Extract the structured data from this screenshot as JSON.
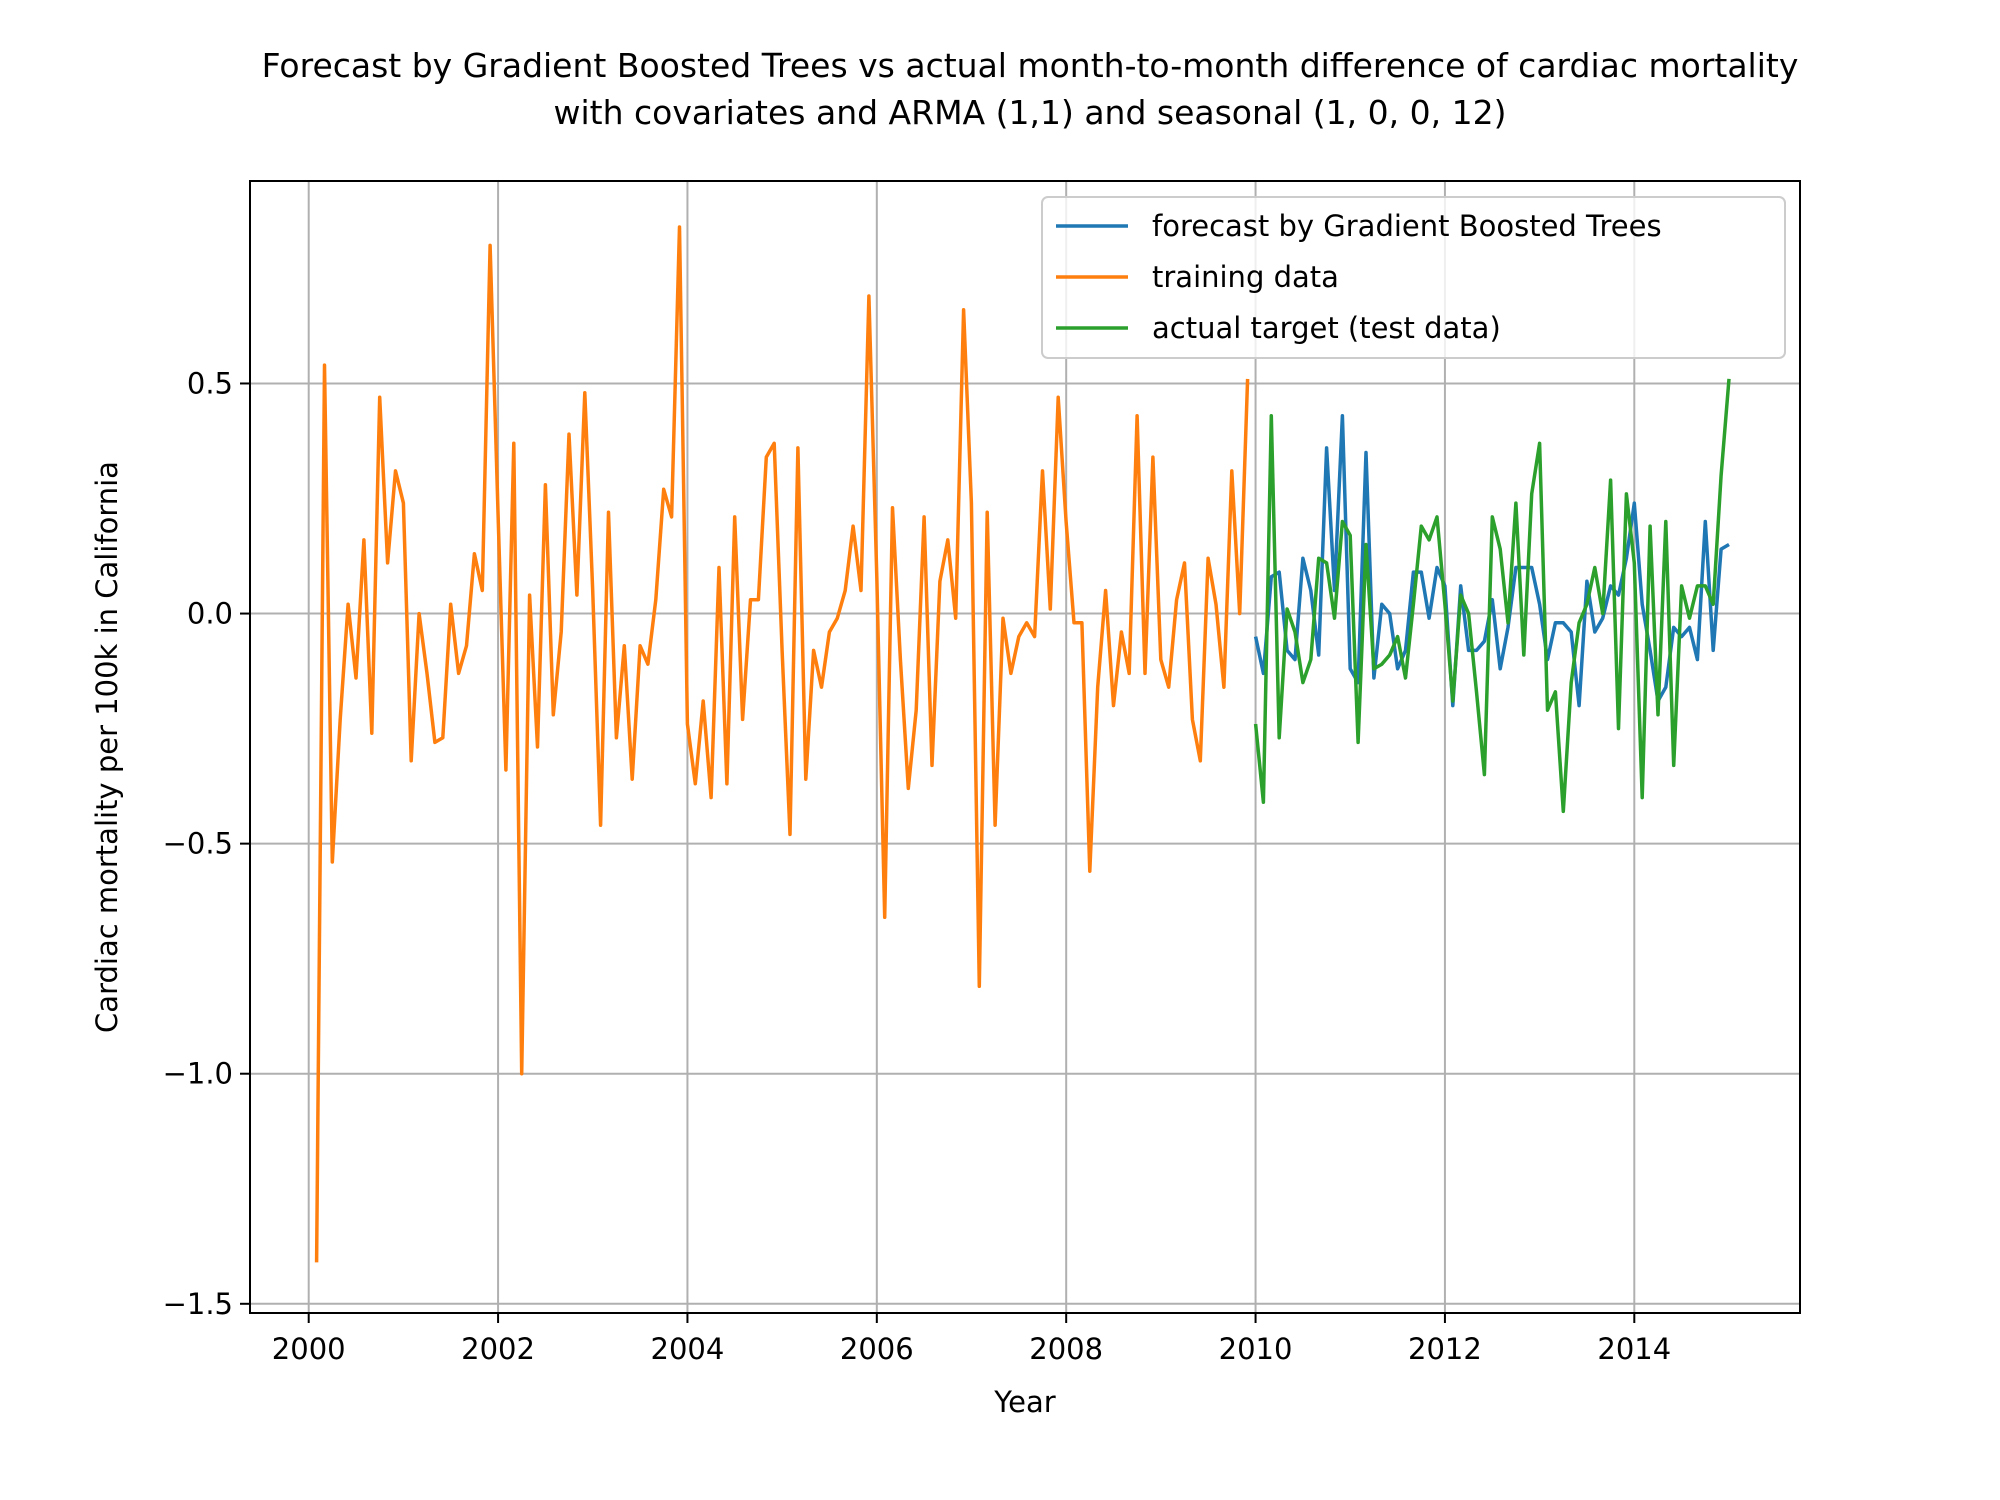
{
  "chart_data": {
    "type": "line",
    "title_line1": "Forecast by Gradient Boosted Trees vs actual month-to-month difference of cardiac mortality",
    "title_line2": "with covariates and ARMA (1,1) and seasonal (1, 0, 0, 12)",
    "xlabel": "Year",
    "ylabel": "Cardiac mortality per 100k in California",
    "xlim": [
      1999.38,
      2015.75
    ],
    "ylim": [
      -1.52,
      0.94
    ],
    "grid": true,
    "legend_position": "top-right",
    "x_ticks": [
      {
        "value": 2000,
        "label": "2000"
      },
      {
        "value": 2002,
        "label": "2002"
      },
      {
        "value": 2004,
        "label": "2004"
      },
      {
        "value": 2006,
        "label": "2006"
      },
      {
        "value": 2008,
        "label": "2008"
      },
      {
        "value": 2010,
        "label": "2010"
      },
      {
        "value": 2012,
        "label": "2012"
      },
      {
        "value": 2014,
        "label": "2014"
      }
    ],
    "y_ticks": [
      {
        "value": 0.5,
        "label": "0.5"
      },
      {
        "value": 0.0,
        "label": "0.0"
      },
      {
        "value": -0.5,
        "label": "−0.5"
      },
      {
        "value": -1.0,
        "label": "−1.0"
      },
      {
        "value": -1.5,
        "label": "−1.5"
      }
    ],
    "series": [
      {
        "name": "forecast by Gradient Boosted Trees",
        "color": "#1f77b4",
        "start_year": 2010.0,
        "step": 0.08333,
        "values": [
          -0.05,
          -0.13,
          0.08,
          0.09,
          -0.08,
          -0.1,
          0.12,
          0.05,
          -0.09,
          0.36,
          0.05,
          0.43,
          -0.12,
          -0.15,
          0.35,
          -0.14,
          0.02,
          0.0,
          -0.12,
          -0.08,
          0.09,
          0.09,
          -0.01,
          0.1,
          0.06,
          -0.2,
          0.06,
          -0.08,
          -0.08,
          -0.06,
          0.03,
          -0.12,
          -0.03,
          0.1,
          0.1,
          0.1,
          0.02,
          -0.1,
          -0.02,
          -0.02,
          -0.04,
          -0.2,
          0.07,
          -0.04,
          -0.01,
          0.06,
          0.04,
          0.12,
          0.24,
          0.02,
          -0.08,
          -0.19,
          -0.16,
          -0.03,
          -0.05,
          -0.03,
          -0.1,
          0.2,
          -0.08,
          0.14,
          0.15
        ]
      },
      {
        "name": "training data",
        "color": "#ff7f0e",
        "start_year": 2000.083,
        "step": 0.08333,
        "values": [
          -1.41,
          0.54,
          -0.54,
          -0.23,
          0.02,
          -0.14,
          0.16,
          -0.26,
          0.47,
          0.11,
          0.31,
          0.24,
          -0.32,
          0.0,
          -0.13,
          -0.28,
          -0.27,
          0.02,
          -0.13,
          -0.07,
          0.13,
          0.05,
          0.8,
          0.22,
          -0.34,
          0.37,
          -1.0,
          0.04,
          -0.29,
          0.28,
          -0.22,
          -0.04,
          0.39,
          0.04,
          0.48,
          0.05,
          -0.46,
          0.22,
          -0.27,
          -0.07,
          -0.36,
          -0.07,
          -0.11,
          0.03,
          0.27,
          0.21,
          0.84,
          -0.24,
          -0.37,
          -0.19,
          -0.4,
          0.1,
          -0.37,
          0.21,
          -0.23,
          0.03,
          0.03,
          0.34,
          0.37,
          -0.08,
          -0.48,
          0.36,
          -0.36,
          -0.08,
          -0.16,
          -0.04,
          -0.01,
          0.05,
          0.19,
          0.05,
          0.69,
          0.08,
          -0.66,
          0.23,
          -0.1,
          -0.38,
          -0.21,
          0.21,
          -0.33,
          0.07,
          0.16,
          -0.01,
          0.66,
          0.24,
          -0.81,
          0.22,
          -0.46,
          -0.01,
          -0.13,
          -0.05,
          -0.02,
          -0.05,
          0.31,
          0.01,
          0.47,
          0.2,
          -0.02,
          -0.02,
          -0.56,
          -0.16,
          0.05,
          -0.2,
          -0.04,
          -0.13,
          0.43,
          -0.13,
          0.34,
          -0.1,
          -0.16,
          0.03,
          0.11,
          -0.23,
          -0.32,
          0.12,
          0.02,
          -0.16,
          0.31,
          0.0,
          0.51
        ]
      },
      {
        "name": "actual target (test data)",
        "color": "#2ca02c",
        "start_year": 2010.0,
        "step": 0.08333,
        "values": [
          -0.24,
          -0.41,
          0.43,
          -0.27,
          0.01,
          -0.04,
          -0.15,
          -0.1,
          0.12,
          0.11,
          -0.01,
          0.2,
          0.17,
          -0.28,
          0.15,
          -0.12,
          -0.11,
          -0.09,
          -0.05,
          -0.14,
          0.02,
          0.19,
          0.16,
          0.21,
          0.02,
          -0.19,
          0.04,
          0.0,
          -0.17,
          -0.35,
          0.21,
          0.14,
          -0.02,
          0.24,
          -0.09,
          0.26,
          0.37,
          -0.21,
          -0.17,
          -0.43,
          -0.15,
          -0.02,
          0.02,
          0.1,
          0.0,
          0.29,
          -0.25,
          0.26,
          0.11,
          -0.4,
          0.19,
          -0.22,
          0.2,
          -0.33,
          0.06,
          -0.01,
          0.06,
          0.06,
          0.02,
          0.3,
          0.51
        ]
      }
    ]
  }
}
